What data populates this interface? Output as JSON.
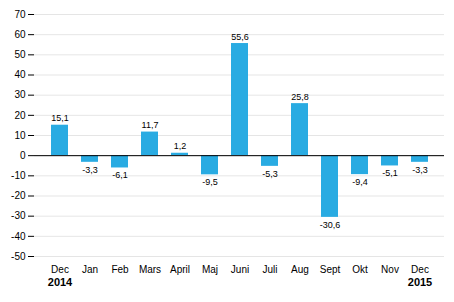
{
  "chart_data": {
    "type": "bar",
    "categories": [
      "Dec",
      "Jan",
      "Feb",
      "Mars",
      "April",
      "Maj",
      "Juni",
      "Juli",
      "Aug",
      "Sept",
      "Okt",
      "Nov",
      "Dec"
    ],
    "values": [
      15.1,
      -3.3,
      -6.1,
      11.7,
      1.2,
      -9.5,
      55.6,
      -5.3,
      25.8,
      -30.6,
      -9.4,
      -5.1,
      -3.3
    ],
    "value_labels": [
      "15,1",
      "-3,3",
      "-6,1",
      "11,7",
      "1,2",
      "-9,5",
      "55,6",
      "-5,3",
      "25,8",
      "-30,6",
      "-9,4",
      "-5,1",
      "-3,3"
    ],
    "color": "#29abe2",
    "ylim": [
      -50,
      70
    ],
    "yticks": [
      -50,
      -40,
      -30,
      -20,
      -10,
      0,
      10,
      20,
      30,
      40,
      50,
      60,
      70
    ],
    "grid": true,
    "data_labels": true,
    "annotations": [
      {
        "text": "2014",
        "index": 0
      },
      {
        "text": "2015",
        "index": 12
      }
    ]
  }
}
